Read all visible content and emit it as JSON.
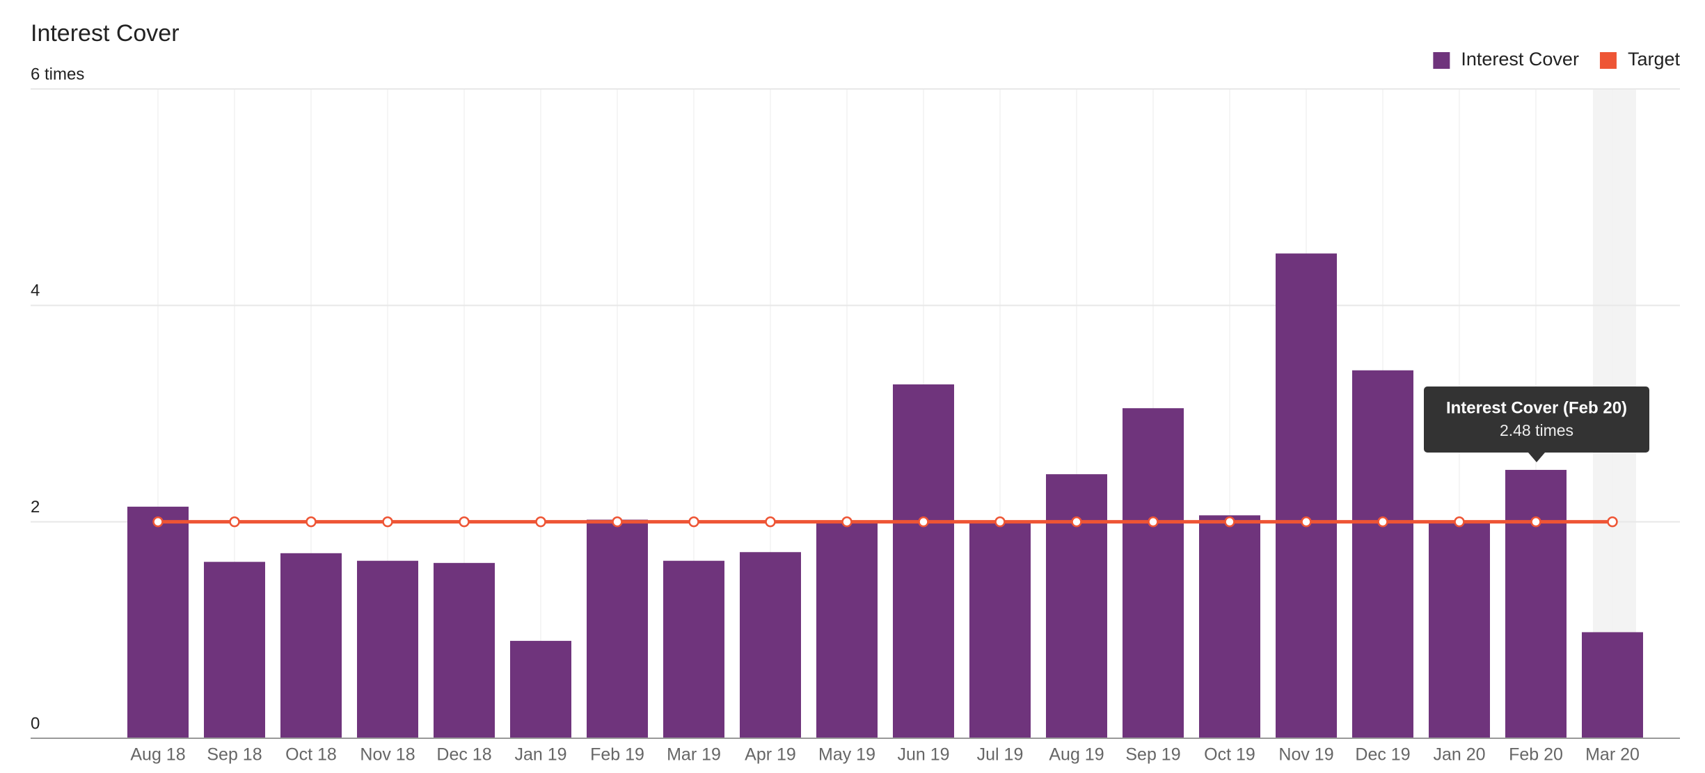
{
  "chart_data": {
    "type": "bar",
    "title": "Interest Cover",
    "categories": [
      "Aug 18",
      "Sep 18",
      "Oct 18",
      "Nov 18",
      "Dec 18",
      "Jan 19",
      "Feb 19",
      "Mar 19",
      "Apr 19",
      "May 19",
      "Jun 19",
      "Jul 19",
      "Aug 19",
      "Sep 19",
      "Oct 19",
      "Nov 19",
      "Dec 19",
      "Jan 20",
      "Feb 20",
      "Mar 20"
    ],
    "series": [
      {
        "name": "Interest Cover",
        "type": "bar",
        "color": "#6f347c",
        "values": [
          2.14,
          1.63,
          1.71,
          1.64,
          1.62,
          0.9,
          2.02,
          1.64,
          1.72,
          2.0,
          3.27,
          2.0,
          2.44,
          3.05,
          2.06,
          4.48,
          3.4,
          2.0,
          2.48,
          0.98
        ]
      },
      {
        "name": "Target",
        "type": "line",
        "color": "#ee5535",
        "values": [
          2,
          2,
          2,
          2,
          2,
          2,
          2,
          2,
          2,
          2,
          2,
          2,
          2,
          2,
          2,
          2,
          2,
          2,
          2,
          2
        ]
      }
    ],
    "ylim": [
      0,
      6
    ],
    "yticks": [
      0,
      2,
      4,
      {
        "value": 6,
        "label": "6 times"
      }
    ],
    "grid": true,
    "legend": "top-right",
    "tooltip": {
      "title": "Interest Cover (Feb 20)",
      "text": "2.48 times"
    }
  }
}
